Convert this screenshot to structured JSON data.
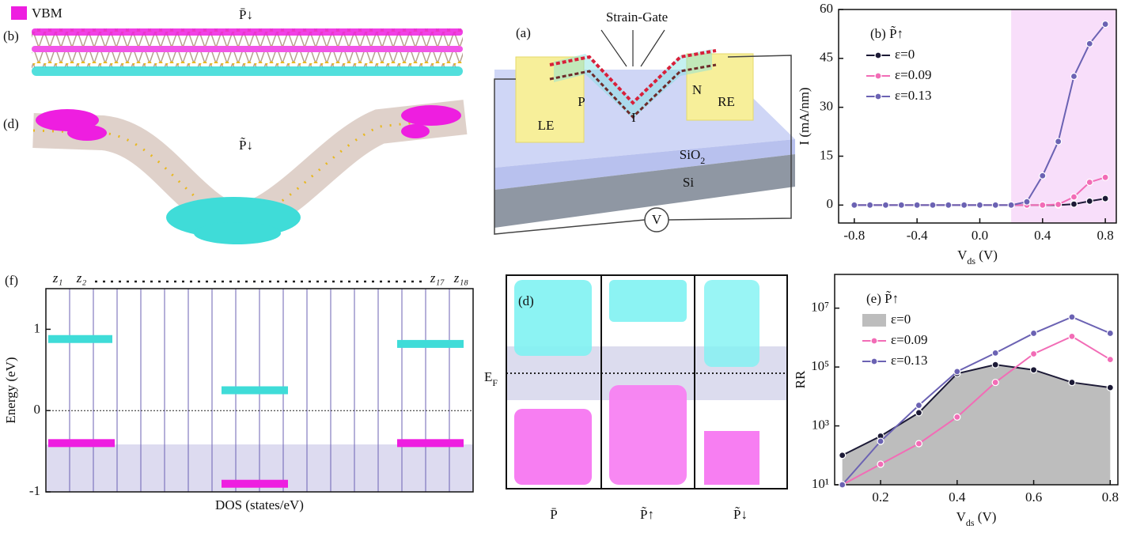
{
  "structures": {
    "vbm_label": "VBM",
    "panel_b": "(b)",
    "b_state": "P̄↓",
    "panel_d": "(d)",
    "d_state": "P̃↓"
  },
  "device": {
    "panel": "(a)",
    "gate": "Strain-Gate",
    "left_electrode": "LE",
    "right_electrode": "RE",
    "p_region": "P",
    "i_region": "I",
    "n_region": "N",
    "oxide": [
      "SiO",
      "2"
    ],
    "substrate": "Si",
    "voltage": "V"
  },
  "band_diagram": {
    "panel": "(d)",
    "fermi": [
      "E",
      "F"
    ],
    "states": [
      "P̄",
      "P̃↑",
      "P̃↓"
    ]
  },
  "chart_data": [
    {
      "type": "line",
      "legend_title": "(b) P̃↑",
      "legend": "upper left",
      "ylabel": [
        "I (mA/nm)"
      ],
      "xlabel": [
        "V",
        "ds",
        " (V)"
      ],
      "x": [
        -0.8,
        -0.7,
        -0.6,
        -0.5,
        -0.4,
        -0.3,
        -0.2,
        -0.1,
        0,
        0.1,
        0.2,
        0.3,
        0.4,
        0.5,
        0.6,
        0.7,
        0.8
      ],
      "series": [
        {
          "name": "ε=0",
          "color": "#1c1a36",
          "values": [
            0,
            0,
            0,
            0,
            0,
            0,
            0,
            0,
            0,
            0,
            0,
            0,
            0,
            0,
            0.3,
            1.2,
            2
          ]
        },
        {
          "name": "ε=0.09",
          "color": "#f26cb6",
          "values": [
            0,
            0,
            0,
            0,
            0,
            0,
            0,
            0,
            0,
            0,
            0,
            0,
            0,
            0.2,
            2.5,
            7,
            8.5
          ]
        },
        {
          "name": "ε=0.13",
          "color": "#6b62b3",
          "values": [
            0,
            0,
            0,
            0,
            0,
            0,
            0,
            0,
            0,
            0,
            0,
            1,
            9,
            19.5,
            39.5,
            49.5,
            55.5
          ]
        }
      ],
      "shade_xlim": [
        0.2,
        0.87
      ],
      "shade_color": "#f8defa",
      "xlim": [
        -0.9,
        0.87
      ],
      "ylim": [
        -5.5,
        60
      ],
      "xticks": [
        -0.8,
        -0.4,
        {
          "value": 0,
          "label": "0.0"
        },
        0.4,
        0.8
      ],
      "yticks": [
        0,
        15,
        30,
        45,
        60
      ]
    },
    {
      "type": "line",
      "legend_title": "(e) P̃↑",
      "legend": "upper left",
      "ylog": true,
      "ylabel": [
        "RR"
      ],
      "xlabel": [
        "V",
        "ds",
        " (V)"
      ],
      "x": [
        0.1,
        0.2,
        0.3,
        0.4,
        0.5,
        0.6,
        0.7,
        0.8
      ],
      "series": [
        {
          "name": "ε=0",
          "color": "#1c1a36",
          "fill": "#bdbdbd",
          "values": [
            100,
            450,
            2800,
            60000,
            120000,
            80000,
            30000,
            20000
          ]
        },
        {
          "name": "ε=0.09",
          "color": "#f26cb6",
          "values": [
            10,
            50,
            250,
            2000,
            30000,
            280000,
            1100000,
            180000
          ]
        },
        {
          "name": "ε=0.13",
          "color": "#6b62b3",
          "values": [
            10,
            300,
            5000,
            70000,
            300000,
            1400000,
            5000000,
            1400000
          ]
        }
      ],
      "xlim": [
        0.08,
        0.82
      ],
      "ylim": [
        10,
        140000000
      ],
      "xticks": [
        0.2,
        0.4,
        0.6,
        0.8
      ],
      "yticks": [
        {
          "value": 10,
          "label": "10¹"
        },
        {
          "value": 1000,
          "label": "10³"
        },
        {
          "value": 100000,
          "label": "10⁵"
        },
        {
          "value": 10000000,
          "label": "10⁷"
        }
      ]
    },
    {
      "type": "dos",
      "panel": "(f)",
      "ylabel": "Energy (eV)",
      "xlabel": "DOS (states/eV)",
      "layers": 18,
      "xlim": [
        0,
        18
      ],
      "ylim": [
        -1,
        1.5
      ],
      "yticks": [
        -1,
        0,
        1
      ],
      "layer_labels": [
        {
          "layer": 1,
          "text": "z₁"
        },
        {
          "layer": 2,
          "text": "z₂"
        },
        {
          "layer": 17,
          "text": "z₁₇"
        },
        {
          "layer": 18,
          "text": "z₁₈"
        }
      ],
      "bands": [
        {
          "from": 0.1,
          "to": 2.8,
          "energy": 0.88,
          "color": "#3fdcd8"
        },
        {
          "from": 7.4,
          "to": 10.2,
          "energy": 0.25,
          "color": "#3fdcd8"
        },
        {
          "from": 14.8,
          "to": 17.6,
          "energy": 0.82,
          "color": "#3fdcd8"
        },
        {
          "from": 0.1,
          "to": 2.9,
          "energy": -0.4,
          "color": "#ee1ee0"
        },
        {
          "from": 7.4,
          "to": 10.2,
          "energy": -0.9,
          "color": "#ee1ee0"
        },
        {
          "from": 14.8,
          "to": 17.6,
          "energy": -0.4,
          "color": "#ee1ee0"
        }
      ]
    }
  ]
}
